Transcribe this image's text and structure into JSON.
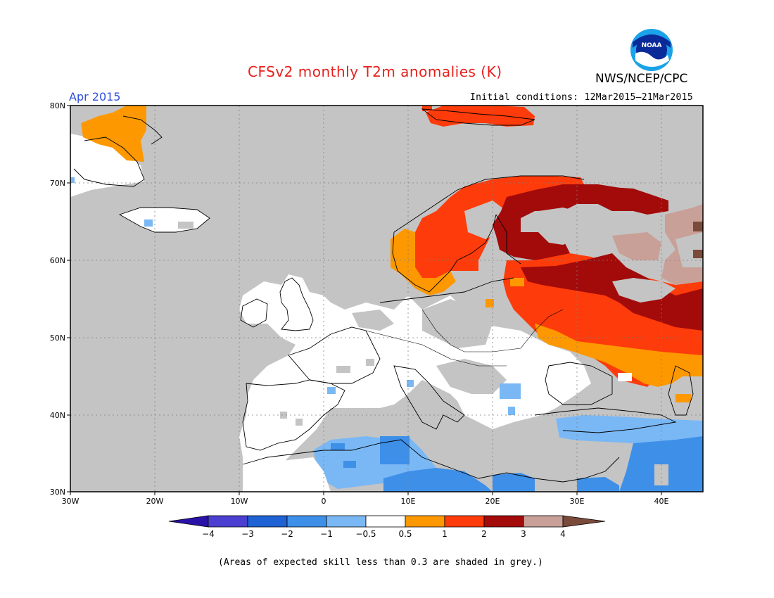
{
  "title": "CFSv2 monthly T2m anomalies (K)",
  "month_label": "Apr 2015",
  "initial_conditions": "Initial conditions: 12Mar2015–21Mar2015",
  "organization": "NWS/NCEP/CPC",
  "logo_text": "NOAA",
  "footnote": "(Areas of expected skill less than 0.3 are shaded in grey.)",
  "lat_labels": [
    "80N",
    "70N",
    "60N",
    "50N",
    "40N",
    "30N"
  ],
  "lon_labels": [
    "30W",
    "20W",
    "10W",
    "0",
    "10E",
    "20E",
    "30E",
    "40E"
  ],
  "colorbar": {
    "tick_labels": [
      "−4",
      "−3",
      "−2",
      "−1",
      "−0.5",
      "0.5",
      "1",
      "2",
      "3",
      "4"
    ],
    "colors": [
      "#2a12a8",
      "#4a3fd0",
      "#1f62d4",
      "#3d8fe8",
      "#7ab8f5",
      "#ffffff",
      "#fd9800",
      "#fe3b0a",
      "#a30a0a",
      "#c8a097",
      "#7a4a3a"
    ]
  },
  "colors": {
    "grey_skill": "#c4c4c4",
    "title": "#e8201c",
    "month": "#2f4fdc"
  }
}
